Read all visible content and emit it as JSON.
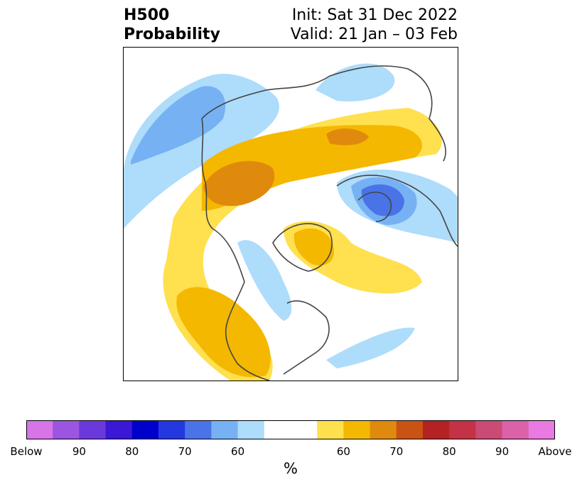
{
  "header": {
    "title_line1": "H500",
    "title_line2": "Probability",
    "init_label": "Init: Sat 31 Dec 2022",
    "valid_label": "Valid: 21 Jan – 03 Feb"
  },
  "colorbar": {
    "colors": [
      "#d674e8",
      "#9b55e0",
      "#6b38db",
      "#3a18d6",
      "#0000cc",
      "#2438df",
      "#4a73e8",
      "#76b2f3",
      "#aedcfb",
      "#ffffff",
      "#ffffff",
      "#ffe04e",
      "#f4b800",
      "#e08a0d",
      "#c95215",
      "#b42223",
      "#c33345",
      "#cb4b75",
      "#db61a9",
      "#e87ae2"
    ],
    "tick_labels": [
      "Below",
      "90",
      "80",
      "70",
      "60",
      "60",
      "70",
      "80",
      "90",
      "Above"
    ],
    "unit_label": "%"
  },
  "map": {
    "legend_colors": {
      "below_60": "#aedcfb",
      "below_70": "#76b2f3",
      "below_80": "#4a73e8",
      "above_60": "#ffe04e",
      "above_70": "#f4b800",
      "above_80": "#e08a0d"
    },
    "coast_color": "#444444"
  }
}
